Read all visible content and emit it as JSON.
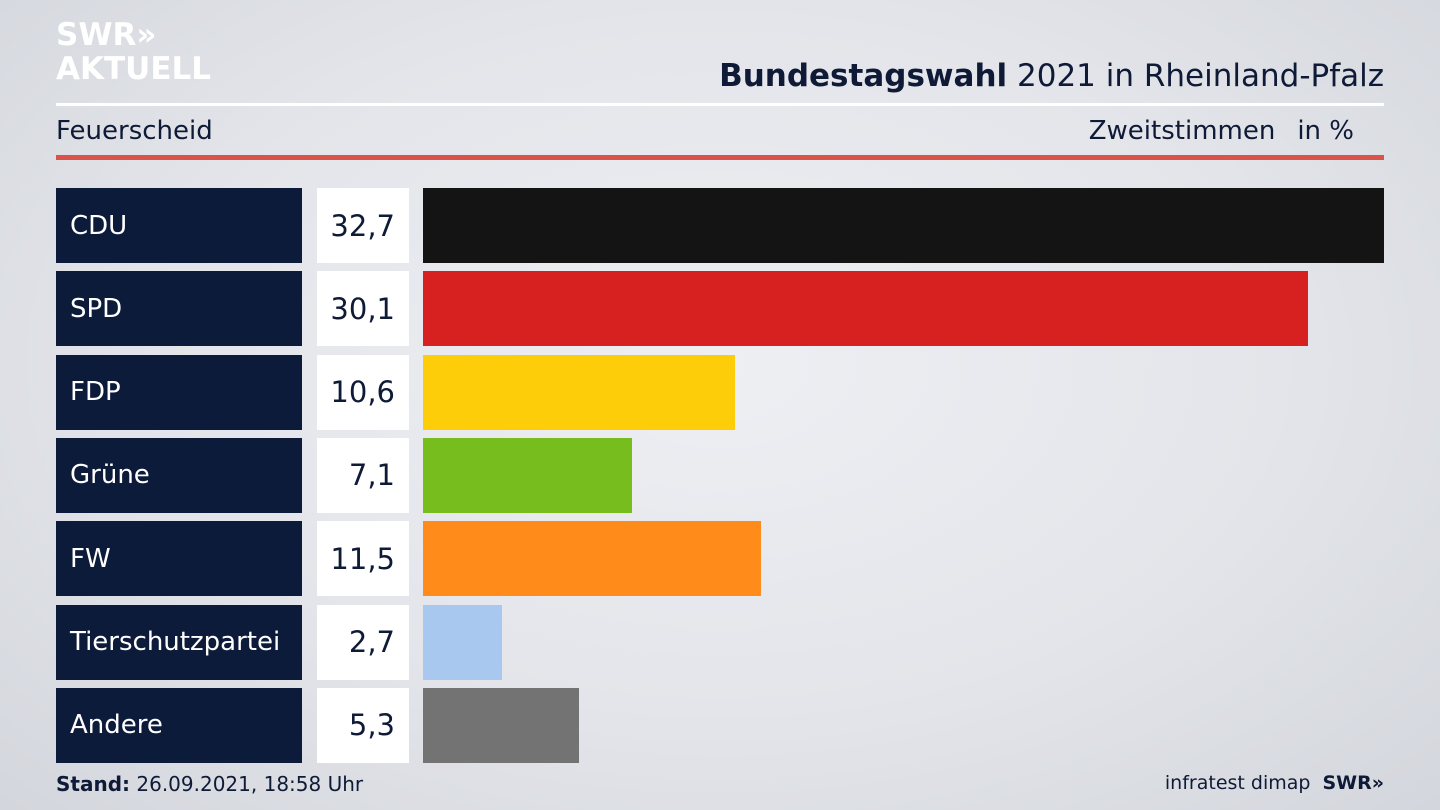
{
  "logo": {
    "line1": "SWR»",
    "line2": "AKTUELL"
  },
  "header": {
    "title_bold": "Bundestagswahl",
    "title_rest": " 2021 in Rheinland-Pfalz",
    "location": "Feuerscheid",
    "measure": "Zweitstimmen",
    "unit": "in %"
  },
  "footer": {
    "stand_label": "Stand:",
    "stand_value": " 26.09.2021, 18:58 Uhr",
    "source": "infratest dimap",
    "brand": "SWR»"
  },
  "chart_data": {
    "type": "bar",
    "orientation": "horizontal",
    "categories": [
      "CDU",
      "SPD",
      "FDP",
      "Grüne",
      "FW",
      "Tierschutzpartei",
      "Andere"
    ],
    "values": [
      32.7,
      30.1,
      10.6,
      7.1,
      11.5,
      2.7,
      5.3
    ],
    "value_labels": [
      "32,7",
      "30,1",
      "10,6",
      "7,1",
      "11,5",
      "2,7",
      "5,3"
    ],
    "colors": [
      "#141414",
      "#d72020",
      "#fdcd0a",
      "#78bd1e",
      "#ff8c1a",
      "#a9c8f0",
      "#737373"
    ],
    "xlim": [
      0,
      32.7
    ]
  }
}
